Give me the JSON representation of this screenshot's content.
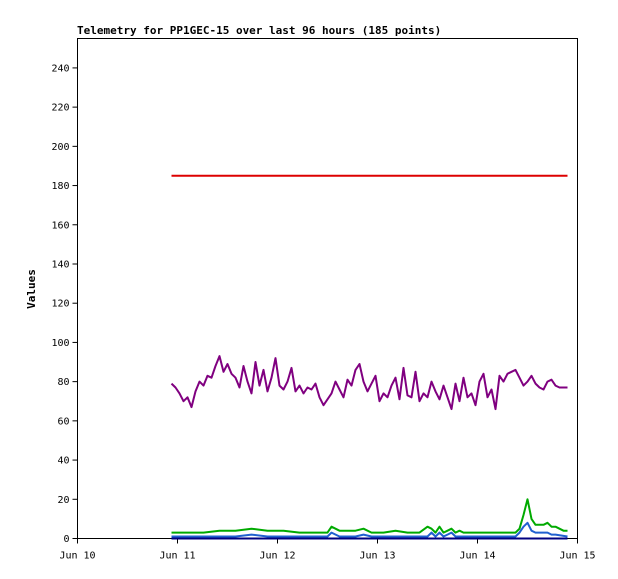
{
  "chart_data": {
    "type": "line",
    "title": "Telemetry for PP1GEC-15 over last 96 hours (185 points)",
    "xlabel": "",
    "ylabel": "Values",
    "x_ticks": [
      "Jun 10",
      "Jun 11",
      "Jun 12",
      "Jun 13",
      "Jun 14",
      "Jun 15"
    ],
    "xlim": [
      10,
      15
    ],
    "ylim": [
      0,
      255
    ],
    "y_ticks": [
      0,
      20,
      40,
      60,
      80,
      100,
      120,
      140,
      160,
      180,
      200,
      220,
      240
    ],
    "grid": false,
    "legend": "none",
    "series": [
      {
        "color": "#dd0000",
        "x": [
          10.94,
          14.9
        ],
        "y": [
          185,
          185
        ]
      },
      {
        "color": "#800080",
        "x": [
          10.94,
          10.98,
          11.02,
          11.06,
          11.1,
          11.14,
          11.18,
          11.22,
          11.26,
          11.3,
          11.34,
          11.38,
          11.42,
          11.46,
          11.5,
          11.54,
          11.58,
          11.62,
          11.66,
          11.7,
          11.74,
          11.78,
          11.82,
          11.86,
          11.9,
          11.94,
          11.98,
          12.02,
          12.06,
          12.1,
          12.14,
          12.18,
          12.22,
          12.26,
          12.3,
          12.34,
          12.38,
          12.42,
          12.46,
          12.5,
          12.54,
          12.58,
          12.62,
          12.66,
          12.7,
          12.74,
          12.78,
          12.82,
          12.86,
          12.9,
          12.94,
          12.98,
          13.02,
          13.06,
          13.1,
          13.14,
          13.18,
          13.22,
          13.26,
          13.3,
          13.34,
          13.38,
          13.42,
          13.46,
          13.5,
          13.54,
          13.58,
          13.62,
          13.66,
          13.7,
          13.74,
          13.78,
          13.82,
          13.86,
          13.9,
          13.94,
          13.98,
          14.02,
          14.06,
          14.1,
          14.14,
          14.18,
          14.22,
          14.26,
          14.3,
          14.34,
          14.38,
          14.42,
          14.46,
          14.5,
          14.54,
          14.58,
          14.62,
          14.66,
          14.7,
          14.74,
          14.78,
          14.82,
          14.86,
          14.9
        ],
        "y": [
          79,
          77,
          74,
          70,
          72,
          67,
          75,
          80,
          78,
          83,
          82,
          88,
          93,
          85,
          89,
          84,
          82,
          77,
          88,
          80,
          74,
          90,
          78,
          86,
          75,
          82,
          92,
          78,
          76,
          80,
          87,
          75,
          78,
          74,
          77,
          76,
          79,
          72,
          68,
          71,
          74,
          80,
          76,
          72,
          81,
          78,
          86,
          89,
          80,
          75,
          79,
          83,
          70,
          74,
          72,
          78,
          82,
          71,
          87,
          73,
          72,
          85,
          70,
          74,
          72,
          80,
          75,
          71,
          78,
          72,
          66,
          79,
          70,
          82,
          72,
          74,
          68,
          80,
          84,
          72,
          76,
          66,
          83,
          80,
          84,
          85,
          86,
          82,
          78,
          80,
          83,
          79,
          77,
          76,
          80,
          81,
          78,
          77,
          77,
          77
        ],
        "name": ""
      },
      {
        "color": "#00aa00",
        "x": [
          10.94,
          11.1,
          11.26,
          11.42,
          11.58,
          11.74,
          11.9,
          12.06,
          12.22,
          12.38,
          12.5,
          12.54,
          12.62,
          12.7,
          12.78,
          12.86,
          12.94,
          13.06,
          13.18,
          13.3,
          13.42,
          13.5,
          13.54,
          13.58,
          13.62,
          13.66,
          13.7,
          13.74,
          13.78,
          13.82,
          13.86,
          13.98,
          14.1,
          14.22,
          14.3,
          14.38,
          14.42,
          14.46,
          14.5,
          14.54,
          14.58,
          14.62,
          14.66,
          14.7,
          14.74,
          14.78,
          14.82,
          14.86,
          14.9
        ],
        "y": [
          3,
          3,
          3,
          4,
          4,
          5,
          4,
          4,
          3,
          3,
          3,
          6,
          4,
          4,
          4,
          5,
          3,
          3,
          4,
          3,
          3,
          6,
          5,
          3,
          6,
          3,
          4,
          5,
          3,
          4,
          3,
          3,
          3,
          3,
          3,
          3,
          5,
          12,
          20,
          10,
          7,
          7,
          7,
          8,
          6,
          6,
          5,
          4,
          4
        ]
      },
      {
        "color": "#2060d0",
        "x": [
          10.94,
          11.26,
          11.42,
          11.58,
          11.74,
          11.9,
          12.06,
          12.22,
          12.38,
          12.5,
          12.54,
          12.62,
          12.78,
          12.86,
          12.94,
          13.06,
          13.3,
          13.5,
          13.54,
          13.58,
          13.62,
          13.66,
          13.7,
          13.74,
          13.78,
          13.86,
          13.98,
          14.22,
          14.38,
          14.42,
          14.46,
          14.5,
          14.54,
          14.58,
          14.7,
          14.74,
          14.78,
          14.9
        ],
        "y": [
          1,
          1,
          1,
          1,
          2,
          1,
          1,
          1,
          1,
          1,
          3,
          1,
          1,
          2,
          1,
          1,
          1,
          1,
          3,
          1,
          3,
          1,
          2,
          3,
          1,
          1,
          1,
          1,
          1,
          3,
          6,
          8,
          4,
          3,
          3,
          2,
          2,
          1
        ]
      },
      {
        "color": "#000080",
        "x": [
          10.94,
          14.9
        ],
        "y": [
          0,
          0
        ]
      }
    ]
  }
}
